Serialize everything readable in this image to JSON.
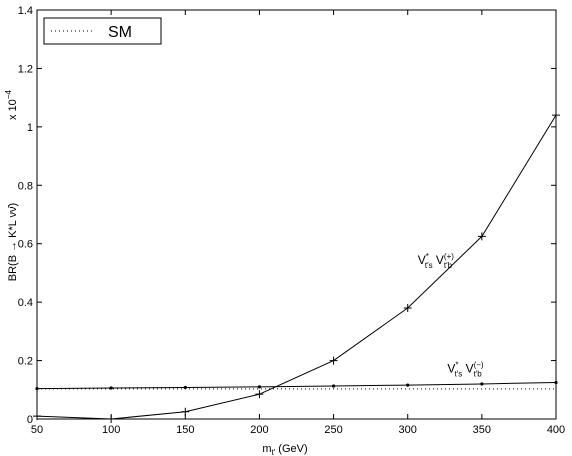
{
  "chart_data": {
    "type": "line",
    "x": [
      50,
      100,
      150,
      200,
      250,
      300,
      350,
      400
    ],
    "xlim": [
      50,
      400
    ],
    "ylim": [
      0,
      1.4
    ],
    "x_ticks": [
      "50",
      "100",
      "150",
      "200",
      "250",
      "300",
      "350",
      "400"
    ],
    "y_ticks": [
      "0",
      "0.2",
      "0.4",
      "0.6",
      "0.8",
      "1",
      "1.2",
      "1.4"
    ],
    "y_tick_values": [
      0,
      0.2,
      0.4,
      0.6,
      0.8,
      1.0,
      1.2,
      1.4
    ],
    "xlabel": {
      "base": "m",
      "sub": "t′",
      "rest": " (GeV)"
    },
    "ylabel": "BR(B → K*L νν̄)",
    "y_multiplier": {
      "base": "x 10",
      "exp": "−4"
    },
    "grid": false,
    "legend_position": "top-left",
    "series": [
      {
        "name": "SM",
        "style": "dotted",
        "values": [
          0.103,
          0.103,
          0.103,
          0.103,
          0.103,
          0.103,
          0.103,
          0.103
        ]
      },
      {
        "style": "solid-plus",
        "values": [
          0.01,
          0.0,
          0.025,
          0.085,
          0.2,
          0.38,
          0.625,
          1.04
        ]
      },
      {
        "style": "solid-dot",
        "values": [
          0.104,
          0.106,
          0.108,
          0.11,
          0.113,
          0.116,
          0.12,
          0.125
        ]
      }
    ],
    "annotations": [
      {
        "text_main": "V",
        "sup": "*",
        "sub": "t′s",
        "text2": " V",
        "sup2": "(+)",
        "sub2": "t′b",
        "anchor_x": 300,
        "anchor_y": 0.53
      },
      {
        "text_main": "V",
        "sup": "*",
        "sub": "t′s",
        "text2": " V",
        "sup2": "(−)",
        "sub2": "t′b",
        "anchor_x": 320,
        "anchor_y": 0.16
      }
    ]
  }
}
